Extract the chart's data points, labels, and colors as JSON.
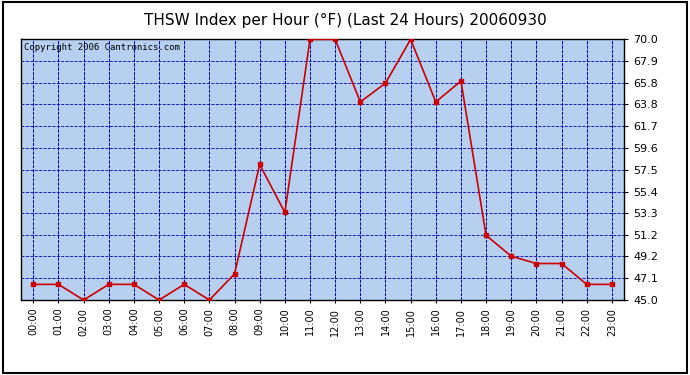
{
  "title": "THSW Index per Hour (°F) (Last 24 Hours) 20060930",
  "copyright": "Copyright 2006 Cantronics.com",
  "x_labels": [
    "00:00",
    "01:00",
    "02:00",
    "03:00",
    "04:00",
    "05:00",
    "06:00",
    "07:00",
    "08:00",
    "09:00",
    "10:00",
    "11:00",
    "12:00",
    "13:00",
    "14:00",
    "15:00",
    "16:00",
    "17:00",
    "18:00",
    "19:00",
    "20:00",
    "21:00",
    "22:00",
    "23:00"
  ],
  "y_values": [
    46.5,
    46.5,
    45.0,
    46.5,
    46.5,
    45.0,
    46.5,
    45.0,
    47.5,
    58.0,
    53.4,
    70.0,
    70.0,
    64.0,
    65.8,
    70.0,
    64.0,
    66.0,
    51.2,
    49.2,
    48.5,
    48.5,
    46.5,
    46.5
  ],
  "line_color": "#cc0000",
  "marker_color": "#cc0000",
  "plot_bg": "#b8d0f0",
  "grid_color": "#0000bb",
  "border_color": "#000000",
  "outer_bg": "#ffffff",
  "title_bg": "#ffffff",
  "ylim": [
    45.0,
    70.0
  ],
  "yticks": [
    45.0,
    47.1,
    49.2,
    51.2,
    53.3,
    55.4,
    57.5,
    59.6,
    61.7,
    63.8,
    65.8,
    67.9,
    70.0
  ],
  "title_fontsize": 11,
  "copyright_fontsize": 6.5,
  "tick_fontsize": 7,
  "ytick_fontsize": 8
}
